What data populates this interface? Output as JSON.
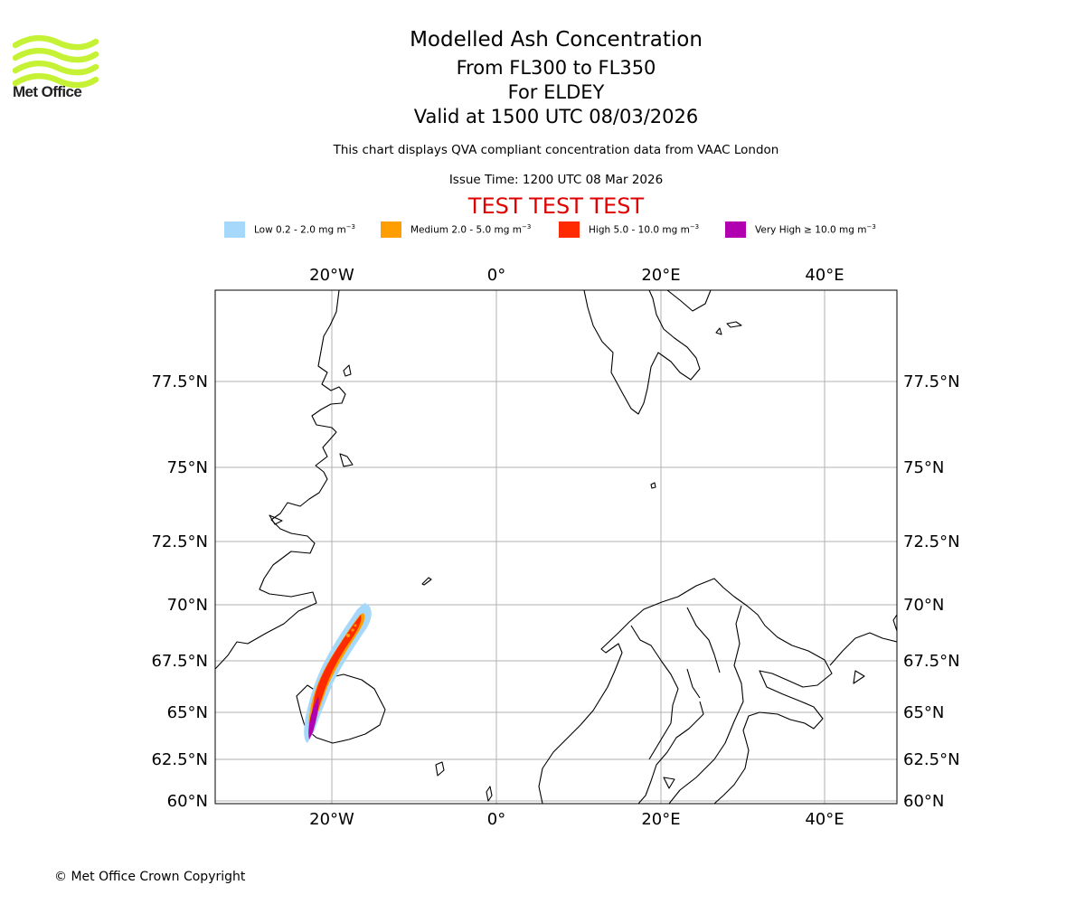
{
  "header": {
    "logo_text": "Met Office",
    "title": "Modelled Ash Concentration",
    "level_range": "From FL300 to FL350",
    "volcano": "For ELDEY",
    "valid_time": "Valid at 1500 UTC 08/03/2026",
    "description": "This chart displays QVA compliant concentration data from VAAC London",
    "issue_time": "Issue Time: 1200 UTC 08 Mar 2026",
    "test_banner": "TEST TEST TEST"
  },
  "legend": [
    {
      "label": "Low 0.2 - 2.0 mg m",
      "unit_exp": "−3",
      "color": "#a6d8fc"
    },
    {
      "label": "Medium 2.0 - 5.0 mg m",
      "unit_exp": "−3",
      "color": "#ff9e00"
    },
    {
      "label": "High 5.0 - 10.0 mg m",
      "unit_exp": "−3",
      "color": "#ff2a00"
    },
    {
      "label": "Very High ≥ 10.0 mg m",
      "unit_exp": "−3",
      "color": "#b000b0"
    }
  ],
  "map": {
    "lon_labels": [
      "20°W",
      "0°",
      "20°E",
      "40°E"
    ],
    "lat_labels": [
      "77.5°N",
      "75°N",
      "72.5°N",
      "70°N",
      "67.5°N",
      "65°N",
      "62.5°N",
      "60°N"
    ],
    "gridlines": true
  },
  "footer": {
    "copyright": "© Met Office Crown Copyright"
  }
}
